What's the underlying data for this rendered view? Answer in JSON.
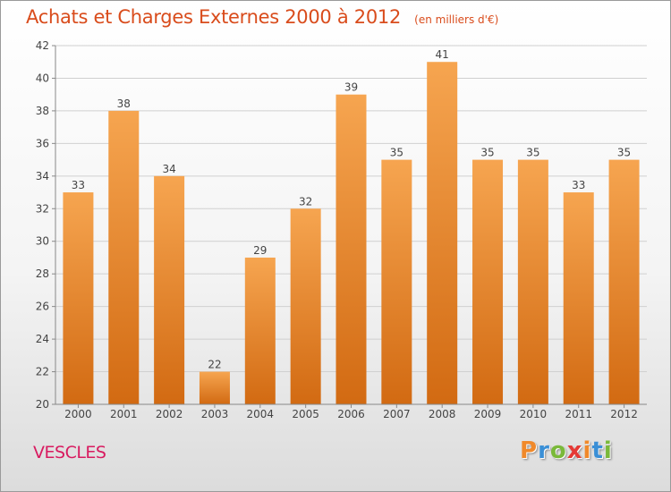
{
  "header": {
    "title": "Achats et Charges Externes 2000 à 2012",
    "subtitle": "(en milliers d'€)"
  },
  "footer": {
    "commune": "VESCLES",
    "logo": {
      "text": "Proxiti",
      "letter_colors": [
        "#f0892a",
        "#3a8fd6",
        "#7ab93a",
        "#e53935",
        "#f0892a",
        "#3a8fd6",
        "#7ab93a"
      ]
    }
  },
  "colors": {
    "bar_top": "#f6a550",
    "bar_bottom": "#d26a12",
    "grid": "#d0d0d0",
    "axis": "#888888",
    "title": "#d94c1c",
    "commune": "#d81b60"
  },
  "chart_data": {
    "type": "bar",
    "title": "Achats et Charges Externes 2000 à 2012",
    "subtitle": "(en milliers d'€)",
    "categories": [
      "2000",
      "2001",
      "2002",
      "2003",
      "2004",
      "2005",
      "2006",
      "2007",
      "2008",
      "2009",
      "2010",
      "2011",
      "2012"
    ],
    "values": [
      33,
      38,
      34,
      22,
      29,
      32,
      39,
      35,
      41,
      35,
      35,
      33,
      35
    ],
    "data_labels": [
      "33",
      "38",
      "34",
      "22",
      "29",
      "32",
      "39",
      "35",
      "41",
      "35",
      "35",
      "33",
      "35"
    ],
    "ylim": [
      20,
      42
    ],
    "yticks": [
      20,
      22,
      24,
      26,
      28,
      30,
      32,
      34,
      36,
      38,
      40,
      42
    ],
    "xlabel": "",
    "ylabel": "",
    "grid": true,
    "legend": "none"
  }
}
